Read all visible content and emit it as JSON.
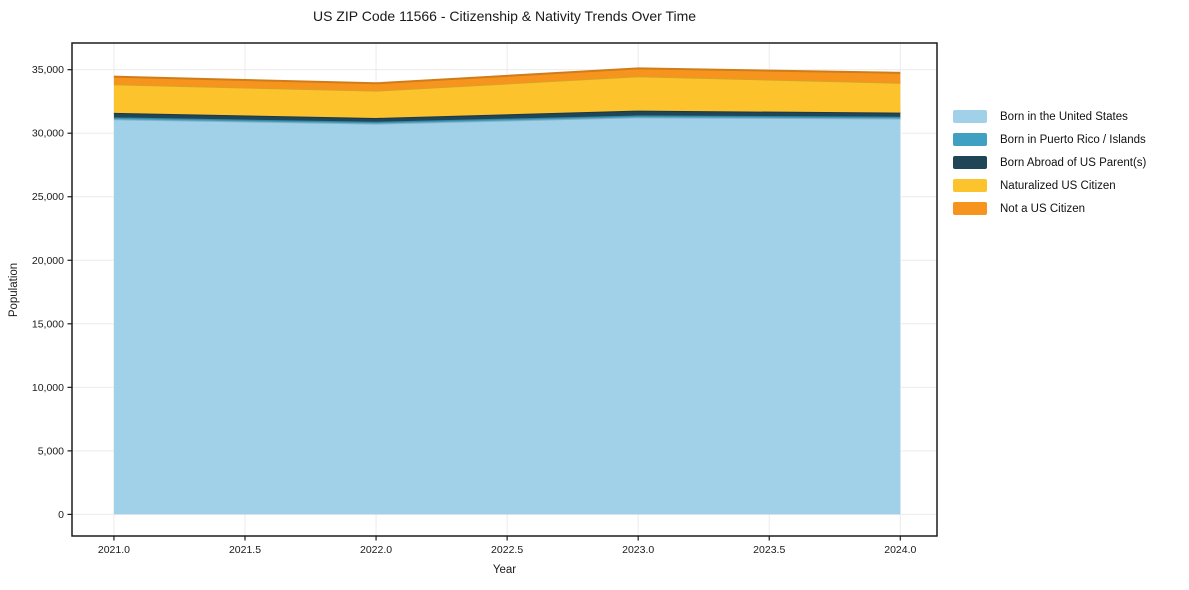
{
  "chart_data": {
    "type": "area",
    "stacked": true,
    "title": "US ZIP Code 11566 - Citizenship & Nativity Trends Over Time",
    "xlabel": "Year",
    "ylabel": "Population",
    "x": [
      2021,
      2022,
      2023,
      2024
    ],
    "series": [
      {
        "name": "Born in the United States",
        "color": "#A1D1E8",
        "values": [
          31100,
          30750,
          31250,
          31150
        ]
      },
      {
        "name": "Born in Puerto Rico / Islands",
        "color": "#3FA0C1",
        "values": [
          150,
          150,
          150,
          150
        ]
      },
      {
        "name": "Born Abroad of US Parent(s)",
        "color": "#1F4557",
        "values": [
          350,
          300,
          380,
          320
        ]
      },
      {
        "name": "Naturalized US Citizen",
        "color": "#FCC32D",
        "values": [
          2250,
          2150,
          2700,
          2350
        ]
      },
      {
        "name": "Not a US Citizen",
        "color": "#F7941E",
        "values": [
          600,
          580,
          620,
          780
        ]
      }
    ],
    "x_ticks": [
      {
        "label": "2021.0",
        "value": 2021.0
      },
      {
        "label": "2021.5",
        "value": 2021.5
      },
      {
        "label": "2022.0",
        "value": 2022.0
      },
      {
        "label": "2022.5",
        "value": 2022.5
      },
      {
        "label": "2023.0",
        "value": 2023.0
      },
      {
        "label": "2023.5",
        "value": 2023.5
      },
      {
        "label": "2024.0",
        "value": 2024.0
      }
    ],
    "y_ticks": [
      {
        "label": "0",
        "value": 0
      },
      {
        "label": "5,000",
        "value": 5000
      },
      {
        "label": "10,000",
        "value": 10000
      },
      {
        "label": "15,000",
        "value": 15000
      },
      {
        "label": "20,000",
        "value": 20000
      },
      {
        "label": "25,000",
        "value": 25000
      },
      {
        "label": "30,000",
        "value": 30000
      },
      {
        "label": "35,000",
        "value": 35000
      }
    ],
    "xlim": [
      2020.84,
      2024.14
    ],
    "ylim": [
      -1700,
      37100
    ],
    "grid": true,
    "legend_position": "right",
    "grid_color": "#ebebeb",
    "frame_color": "#1c1c1c",
    "text_color": "#1a1a1a",
    "background": "#ffffff"
  }
}
